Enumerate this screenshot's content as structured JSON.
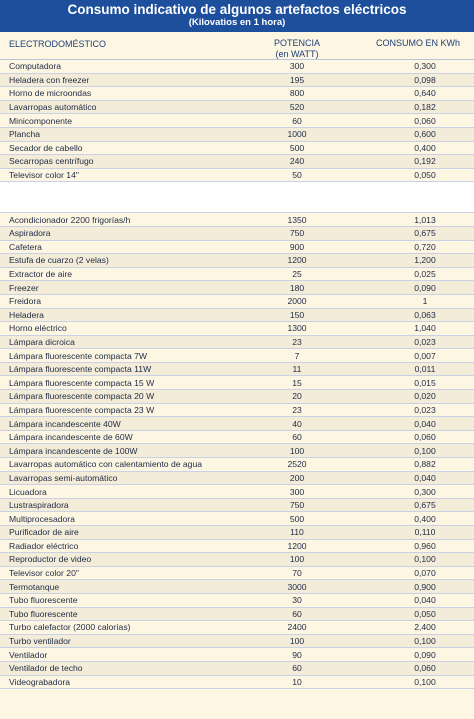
{
  "header": {
    "title": "Consumo indicativo de algunos artefactos eléctricos",
    "subtitle": "(Kilovatios en 1 hora)"
  },
  "columns": {
    "appliance": "ELECTRODOMÉSTICO",
    "power_line1": "POTENCIA",
    "power_line2": "(en WATT)",
    "consumption": "CONSUMO EN KWh"
  },
  "group1": [
    {
      "name": "Computadora",
      "power": "300",
      "kwh": "0,300"
    },
    {
      "name": "Heladera con freezer",
      "power": "195",
      "kwh": "0,098"
    },
    {
      "name": "Horno de microondas",
      "power": "800",
      "kwh": "0,640"
    },
    {
      "name": "Lavarropas automático",
      "power": "520",
      "kwh": "0,182"
    },
    {
      "name": "Minicomponente",
      "power": "60",
      "kwh": "0,060"
    },
    {
      "name": "Plancha",
      "power": "1000",
      "kwh": "0,600"
    },
    {
      "name": "Secador de cabello",
      "power": "500",
      "kwh": "0,400"
    },
    {
      "name": "Secarropas centrífugo",
      "power": "240",
      "kwh": "0,192"
    },
    {
      "name": "Televisor color 14\"",
      "power": "50",
      "kwh": "0,050"
    }
  ],
  "group2": [
    {
      "name": "Acondicionador 2200 frigorías/h",
      "power": "1350",
      "kwh": "1,013"
    },
    {
      "name": "Aspiradora",
      "power": "750",
      "kwh": "0,675"
    },
    {
      "name": "Cafetera",
      "power": "900",
      "kwh": "0,720"
    },
    {
      "name": "Estufa de cuarzo (2 velas)",
      "power": "1200",
      "kwh": "1,200"
    },
    {
      "name": "Extractor de aire",
      "power": "25",
      "kwh": "0,025"
    },
    {
      "name": "Freezer",
      "power": "180",
      "kwh": "0,090"
    },
    {
      "name": "Freidora",
      "power": "2000",
      "kwh": "1"
    },
    {
      "name": "Heladera",
      "power": "150",
      "kwh": "0,063"
    },
    {
      "name": "Horno eléctrico",
      "power": "1300",
      "kwh": "1,040"
    },
    {
      "name": "Lámpara dicroica",
      "power": "23",
      "kwh": "0,023"
    },
    {
      "name": "Lámpara fluorescente compacta 7W",
      "power": "7",
      "kwh": "0,007"
    },
    {
      "name": "Lámpara fluorescente compacta 11W",
      "power": "11",
      "kwh": "0,011"
    },
    {
      "name": "Lámpara fluorescente compacta 15 W",
      "power": "15",
      "kwh": "0,015"
    },
    {
      "name": "Lámpara fluorescente compacta 20 W",
      "power": "20",
      "kwh": "0,020"
    },
    {
      "name": "Lámpara fluorescente compacta 23 W",
      "power": "23",
      "kwh": "0,023"
    },
    {
      "name": "Lámpara incandescente 40W",
      "power": "40",
      "kwh": "0,040"
    },
    {
      "name": "Lámpara incandescente de 60W",
      "power": "60",
      "kwh": "0,060"
    },
    {
      "name": "Lámpara incandescente de 100W",
      "power": "100",
      "kwh": "0,100"
    },
    {
      "name": "Lavarropas automático con calentamiento de agua",
      "power": "2520",
      "kwh": "0,882"
    },
    {
      "name": "Lavarropas semi-automático",
      "power": "200",
      "kwh": "0,040"
    },
    {
      "name": "Licuadora",
      "power": "300",
      "kwh": "0,300"
    },
    {
      "name": "Lustraspiradora",
      "power": "750",
      "kwh": "0,675"
    },
    {
      "name": "Multiprocesadora",
      "power": "500",
      "kwh": "0,400"
    },
    {
      "name": "Purificador de aire",
      "power": "110",
      "kwh": "0,110"
    },
    {
      "name": "Radiador eléctrico",
      "power": "1200",
      "kwh": "0,960"
    },
    {
      "name": "Reproductor de video",
      "power": "100",
      "kwh": "0,100"
    },
    {
      "name": "Televisor color 20\"",
      "power": "70",
      "kwh": "0,070"
    },
    {
      "name": "Termotanque",
      "power": "3000",
      "kwh": "0,900"
    },
    {
      "name": "Tubo fluorescente",
      "power": "30",
      "kwh": "0,040"
    },
    {
      "name": "Tubo fluorescente",
      "power": "60",
      "kwh": "0,050"
    },
    {
      "name": "Turbo calefactor (2000 calorías)",
      "power": "2400",
      "kwh": "2,400"
    },
    {
      "name": "Turbo ventilador",
      "power": "100",
      "kwh": "0,100"
    },
    {
      "name": "Ventilador",
      "power": "90",
      "kwh": "0,090"
    },
    {
      "name": "Ventilador de techo",
      "power": "60",
      "kwh": "0,060"
    },
    {
      "name": "Videograbadora",
      "power": "10",
      "kwh": "0,100"
    }
  ]
}
